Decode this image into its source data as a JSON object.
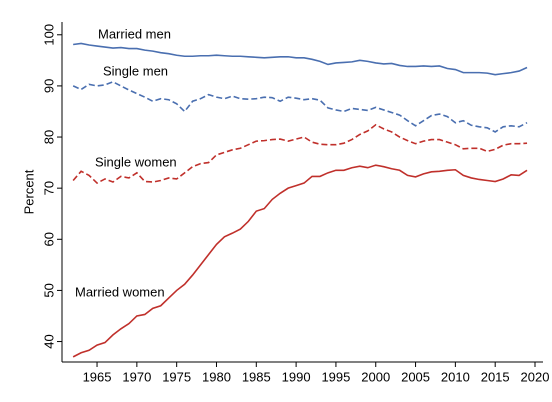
{
  "chart_data": {
    "type": "line",
    "y_label": "Percent",
    "xlim": [
      1960.6,
      2020
    ],
    "ylim": [
      36,
      102.5
    ],
    "xticks": [
      1965,
      1970,
      1975,
      1980,
      1985,
      1990,
      1995,
      2000,
      2005,
      2010,
      2015,
      2020
    ],
    "yticks": [
      40,
      50,
      60,
      70,
      80,
      90,
      100
    ],
    "grid": false,
    "x": [
      1962,
      1963,
      1964,
      1965,
      1966,
      1967,
      1968,
      1969,
      1970,
      1971,
      1972,
      1973,
      1974,
      1975,
      1976,
      1977,
      1978,
      1979,
      1980,
      1981,
      1982,
      1983,
      1984,
      1985,
      1986,
      1987,
      1988,
      1989,
      1990,
      1991,
      1992,
      1993,
      1994,
      1995,
      1996,
      1997,
      1998,
      1999,
      2000,
      2001,
      2002,
      2003,
      2004,
      2005,
      2006,
      2007,
      2008,
      2009,
      2010,
      2011,
      2012,
      2013,
      2014,
      2015,
      2016,
      2017,
      2018,
      2019
    ],
    "series": [
      {
        "name": "Married men",
        "color": "#4a6fb0",
        "style": "solid",
        "values": [
          98.1,
          98.3,
          98,
          97.8,
          97.6,
          97.4,
          97.5,
          97.3,
          97.3,
          97,
          96.8,
          96.5,
          96.3,
          96,
          95.8,
          95.8,
          95.9,
          95.9,
          96,
          95.9,
          95.8,
          95.8,
          95.7,
          95.6,
          95.5,
          95.6,
          95.7,
          95.7,
          95.5,
          95.5,
          95.2,
          94.8,
          94.2,
          94.5,
          94.6,
          94.7,
          95,
          94.8,
          94.5,
          94.3,
          94.4,
          94,
          93.8,
          93.8,
          93.9,
          93.8,
          93.9,
          93.4,
          93.2,
          92.6,
          92.6,
          92.6,
          92.5,
          92.2,
          92.4,
          92.6,
          92.9,
          93.6
        ]
      },
      {
        "name": "Single men",
        "color": "#4a6fb0",
        "style": "dashed",
        "values": [
          90,
          89.3,
          90.3,
          90,
          90.2,
          90.8,
          90,
          89.2,
          88.5,
          87.8,
          87,
          87.5,
          87.3,
          86.5,
          85,
          87,
          87.5,
          88.3,
          87.8,
          87.5,
          88,
          87.5,
          87.4,
          87.5,
          87.8,
          87.7,
          87,
          87.8,
          87.6,
          87.3,
          87.5,
          87.2,
          85.7,
          85.3,
          85,
          85.6,
          85.4,
          85.2,
          85.8,
          85.3,
          84.8,
          84.3,
          83.2,
          82.2,
          83.2,
          84.2,
          84.5,
          84,
          82.8,
          83.2,
          82.3,
          82,
          81.8,
          81,
          82,
          82.2,
          82,
          82.8
        ]
      },
      {
        "name": "Single women",
        "color": "#c0302b",
        "style": "dashed",
        "values": [
          71.5,
          73.3,
          72.5,
          71,
          71.8,
          71.2,
          72.3,
          72,
          73,
          71.3,
          71.2,
          71.5,
          72,
          71.8,
          73,
          74.2,
          74.8,
          75,
          76.5,
          77,
          77.5,
          77.8,
          78.5,
          79.2,
          79.3,
          79.5,
          79.6,
          79.2,
          79.6,
          80,
          79,
          78.6,
          78.5,
          78.5,
          78.8,
          79.5,
          80.5,
          81.2,
          82.4,
          81.6,
          81,
          80,
          79.3,
          78.7,
          79.2,
          79.5,
          79.5,
          79,
          78.5,
          77.7,
          77.8,
          77.8,
          77.2,
          77.6,
          78.4,
          78.7,
          78.7,
          78.8
        ]
      },
      {
        "name": "Married women",
        "color": "#c0302b",
        "style": "solid",
        "values": [
          37,
          37.8,
          38.3,
          39.3,
          39.8,
          41.3,
          42.5,
          43.5,
          45,
          45.3,
          46.5,
          47,
          48.5,
          50,
          51.2,
          53,
          55,
          57,
          59,
          60.5,
          61.2,
          62,
          63.5,
          65.5,
          66,
          67.8,
          69,
          70,
          70.5,
          71,
          72.3,
          72.3,
          73,
          73.5,
          73.5,
          74,
          74.3,
          74,
          74.5,
          74.2,
          73.8,
          73.5,
          72.5,
          72.2,
          72.8,
          73.2,
          73.3,
          73.5,
          73.6,
          72.5,
          72,
          71.7,
          71.5,
          71.3,
          71.8,
          72.6,
          72.5,
          73.5
        ]
      }
    ]
  }
}
